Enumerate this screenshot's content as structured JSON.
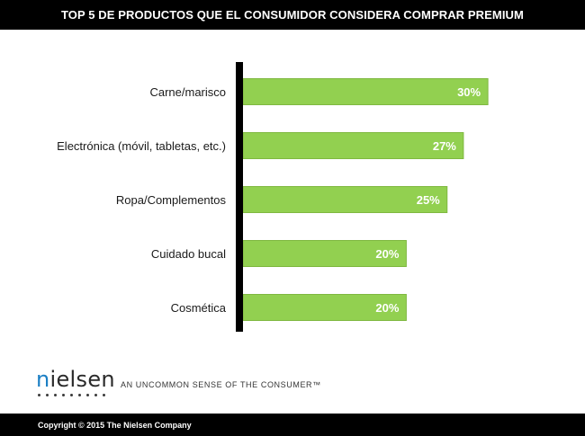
{
  "title": "TOP 5 DE PRODUCTOS QUE EL CONSUMIDOR CONSIDERA COMPRAR PREMIUM",
  "chart_data": {
    "type": "bar",
    "orientation": "horizontal",
    "categories": [
      "Carne/marisco",
      "Electrónica (móvil, tabletas, etc.)",
      "Ropa/Complementos",
      "Cuidado bucal",
      "Cosmética"
    ],
    "values": [
      30,
      27,
      25,
      20,
      20
    ],
    "value_labels": [
      "30%",
      "27%",
      "25%",
      "20%",
      "20%"
    ],
    "unit": "%",
    "xlim": [
      0,
      36
    ],
    "grid": false,
    "legend": "none",
    "bar_color": "#92d050",
    "axis_color": "#000000"
  },
  "brand": {
    "logo_first": "n",
    "logo_rest": "ielsen",
    "tagline": "AN UNCOMMON SENSE OF THE CONSUMER™"
  },
  "footer": {
    "copyright": "Copyright © 2015 The Nielsen Company"
  }
}
